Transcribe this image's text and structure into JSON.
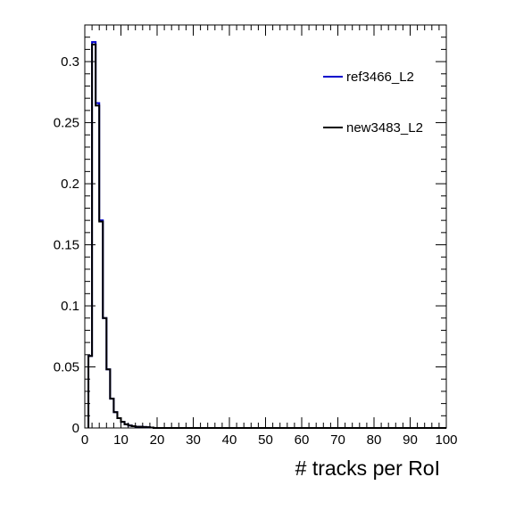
{
  "chart_data": {
    "type": "histogram",
    "title": "",
    "xlabel": "# tracks per RoI",
    "ylabel": "",
    "xlim": [
      0,
      100
    ],
    "ylim": [
      0,
      0.33
    ],
    "bin_width": 1,
    "x_ticks": [
      0,
      10,
      20,
      30,
      40,
      50,
      60,
      70,
      80,
      90,
      100
    ],
    "x_tick_labels": [
      "0",
      "10",
      "20",
      "30",
      "40",
      "50",
      "60",
      "70",
      "80",
      "90",
      "100"
    ],
    "y_ticks": [
      0,
      0.05,
      0.1,
      0.15,
      0.2,
      0.25,
      0.3
    ],
    "y_tick_labels": [
      "0",
      "0.05",
      "0.1",
      "0.15",
      "0.2",
      "0.25",
      "0.3"
    ],
    "legend_position": "top-right",
    "series": [
      {
        "name": "ref3466_L2",
        "color": "#0000cc",
        "bin_edges_start": 1,
        "values": [
          0.059,
          0.316,
          0.266,
          0.17,
          0.09,
          0.048,
          0.024,
          0.013,
          0.008,
          0.005,
          0.003,
          0.002,
          0.0015,
          0.001,
          0.001,
          0.0008,
          0.0006,
          0.0004
        ]
      },
      {
        "name": "new3483_L2",
        "color": "#000000",
        "bin_edges_start": 1,
        "values": [
          0.059,
          0.314,
          0.264,
          0.169,
          0.09,
          0.048,
          0.024,
          0.013,
          0.008,
          0.005,
          0.003,
          0.002,
          0.0015,
          0.001,
          0.001,
          0.0008,
          0.0006,
          0.0004
        ]
      }
    ]
  }
}
